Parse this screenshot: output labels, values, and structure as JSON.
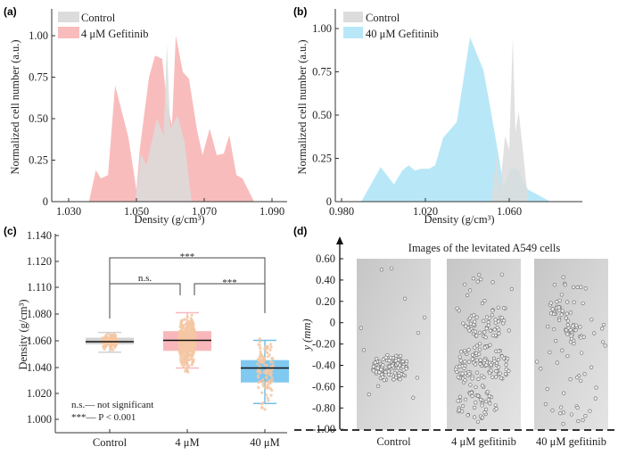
{
  "colors": {
    "control": "#dcdcdc",
    "gef4": "#f9bcbc",
    "gef40": "#b8e8f8",
    "box_control": "#d2d2d2",
    "box_4": "#f8b8bb",
    "box_40": "#80c9f1",
    "jitter": "#f4c7a3",
    "whisker_40": "#6fc0ea"
  },
  "chart_data": [
    {
      "panel": "(a)",
      "type": "area",
      "xlabel": "Density (g/cm³)",
      "ylabel": "Normalized cell number (a.u.)",
      "xticks": [
        "1.030",
        "1.050",
        "1.070",
        "1.090"
      ],
      "yticks": [
        "0",
        "0.25",
        "0.50",
        "0.75",
        "1.00"
      ],
      "xlim": [
        1.025,
        1.0955
      ],
      "ylim": [
        0,
        1.1
      ],
      "legend": "top-left",
      "series": [
        {
          "name": "4 μM Gefitinib",
          "color_key": "gef4",
          "x": [
            1.036,
            1.038,
            1.0395,
            1.0416,
            1.0437,
            1.0476,
            1.05,
            1.051,
            1.0537,
            1.0555,
            1.0576,
            1.059,
            1.0605,
            1.0616,
            1.0637,
            1.0655,
            1.0679,
            1.0695,
            1.0716,
            1.0737,
            1.0758,
            1.0774,
            1.0795,
            1.0813,
            1.0847
          ],
          "y": [
            0,
            0.19,
            0.14,
            0.16,
            0.7,
            0.39,
            0.07,
            0.32,
            0.75,
            0.88,
            0.86,
            0.59,
            0.46,
            1.0,
            0.78,
            0.74,
            0.43,
            0.28,
            0.44,
            0.28,
            0.29,
            0.4,
            0.16,
            0.14,
            0
          ]
        },
        {
          "name": "Control",
          "color_key": "control",
          "x": [
            1.0497,
            1.0513,
            1.053,
            1.056,
            1.058,
            1.059,
            1.06,
            1.0621,
            1.0642,
            1.0663
          ],
          "y": [
            0,
            0.29,
            0.22,
            0.5,
            0.4,
            0.95,
            0.44,
            0.52,
            0.36,
            0
          ]
        }
      ]
    },
    {
      "panel": "(b)",
      "type": "area",
      "xlabel": "Density (g/cm³)",
      "ylabel": "Normalized cell number (a.u.)",
      "xticks": [
        "0.980",
        "1.020",
        "1.060"
      ],
      "yticks": [
        "0",
        "0.25",
        "0.50",
        "0.75",
        "1.00"
      ],
      "xlim": [
        0.977,
        1.0949
      ],
      "ylim": [
        0,
        1.1
      ],
      "legend": "top-left",
      "series": [
        {
          "name": "40 μM Gefitinib",
          "color_key": "gef40",
          "x": [
            0.9894,
            0.9987,
            1.005,
            1.009,
            1.012,
            1.015,
            1.018,
            1.022,
            1.0247,
            1.0285,
            1.035,
            1.0413,
            1.0477,
            1.05,
            1.0553,
            1.0574,
            1.0604,
            1.0638,
            1.0689,
            1.0736,
            1.0796
          ],
          "y": [
            0,
            0.2,
            0.1,
            0.18,
            0.21,
            0.18,
            0.19,
            0.19,
            0.21,
            0.37,
            0.46,
            0.95,
            0.76,
            0.61,
            0.24,
            0.08,
            0.19,
            0.19,
            0.07,
            0.04,
            0
          ]
        },
        {
          "name": "Control",
          "color_key": "control",
          "x": [
            1.0515,
            1.054,
            1.0555,
            1.058,
            1.06,
            1.0617,
            1.063,
            1.0645,
            1.0665,
            1.069
          ],
          "y": [
            0,
            0.28,
            0.05,
            0.38,
            0.3,
            0.95,
            0.4,
            0.52,
            0.3,
            0
          ]
        }
      ]
    },
    {
      "panel": "(c)",
      "type": "box",
      "ylabel": "Density (g/cm³)",
      "categories": [
        "Control",
        "4 μM",
        "40 μM"
      ],
      "yticks": [
        "1.000",
        "1.020",
        "1.040",
        "1.060",
        "1.080",
        "1.110",
        "1.120",
        "1.140"
      ],
      "boxes": [
        {
          "category": "Control",
          "color_key": "box_control",
          "whisker_low": 1.051,
          "q1": 1.057,
          "median": 1.059,
          "q3": 1.062,
          "whisker_high": 1.066,
          "points_range": [
            1.052,
            1.066
          ],
          "n_points": 120
        },
        {
          "category": "4 μM",
          "color_key": "box_4",
          "whisker_low": 1.039,
          "q1": 1.052,
          "median": 1.06,
          "q3": 1.067,
          "whisker_high": 1.081,
          "points_range": [
            1.032,
            1.084
          ],
          "n_points": 400
        },
        {
          "category": "40 μM",
          "color_key": "box_40",
          "whisker_low": 1.012,
          "q1": 1.028,
          "median": 1.039,
          "q3": 1.045,
          "whisker_high": 1.06,
          "points_range": [
            0.997,
            1.071
          ],
          "n_points": 110
        }
      ],
      "comparisons": [
        {
          "from": "Control",
          "to": "40 μM",
          "label": "***"
        },
        {
          "from": "Control",
          "to": "4 μM",
          "label": "n.s."
        },
        {
          "from": "4 μM",
          "to": "40 μM",
          "label": "***"
        }
      ],
      "notes": [
        "n.s.— not significant",
        "***— P < 0.001"
      ]
    }
  ],
  "panel_d": {
    "label": "(d)",
    "title": "Images of the levitated A549 cells",
    "ylabel": "y (mm)",
    "yticks": [
      "0.60",
      "0.40",
      "0.20",
      "0",
      "-0.20",
      "-0.40",
      "-0.60",
      "-0.80",
      "-1.00"
    ],
    "images": [
      {
        "caption": "Control",
        "cluster": "compact"
      },
      {
        "caption": "4 μM gefitinib",
        "cluster": "spread"
      },
      {
        "caption": "40 μM gefitinib",
        "cluster": "sparse"
      }
    ]
  },
  "panel_labels": [
    "(a)",
    "(b)",
    "(c)",
    "(d)"
  ]
}
